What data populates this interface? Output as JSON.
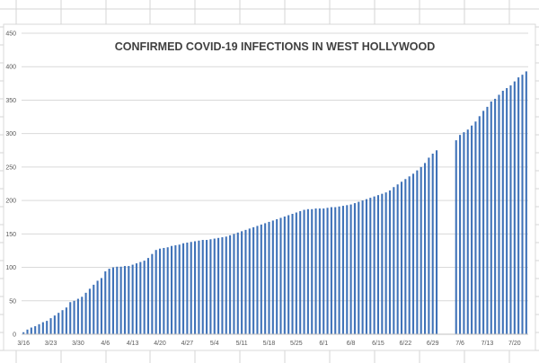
{
  "chart_data": {
    "type": "bar",
    "title": "CONFIRMED COVID-19 INFECTIONS IN WEST HOLLYWOOD",
    "xlabel": "",
    "ylabel": "",
    "ylim": [
      0,
      450
    ],
    "yticks": [
      "0",
      "50",
      "100",
      "150",
      "200",
      "250",
      "300",
      "350",
      "400",
      "450"
    ],
    "grid": true,
    "legend": "none",
    "bar_color": "#3f72b8",
    "x_tick_labels": [
      "3/16",
      "3/23",
      "3/30",
      "4/6",
      "4/13",
      "4/20",
      "4/27",
      "5/4",
      "5/11",
      "5/18",
      "5/25",
      "6/1",
      "6/8",
      "6/15",
      "6/22",
      "6/29",
      "7/6",
      "7/13",
      "7/20"
    ],
    "x_tick_every": 7,
    "values": [
      3,
      7,
      10,
      12,
      15,
      18,
      20,
      24,
      28,
      32,
      36,
      40,
      48,
      50,
      53,
      56,
      62,
      68,
      74,
      80,
      84,
      94,
      98,
      100,
      101,
      101,
      102,
      102,
      104,
      106,
      108,
      110,
      114,
      120,
      126,
      128,
      129,
      130,
      132,
      133,
      134,
      136,
      137,
      138,
      139,
      140,
      141,
      141,
      142,
      143,
      144,
      145,
      146,
      148,
      150,
      152,
      154,
      156,
      158,
      160,
      162,
      164,
      166,
      168,
      170,
      172,
      174,
      176,
      178,
      180,
      182,
      184,
      186,
      187,
      187,
      188,
      188,
      188,
      189,
      190,
      190,
      191,
      192,
      193,
      194,
      196,
      198,
      200,
      202,
      204,
      206,
      208,
      210,
      212,
      215,
      220,
      224,
      228,
      232,
      236,
      240,
      245,
      250,
      256,
      264,
      270,
      275,
      null,
      null,
      null,
      null,
      290,
      298,
      302,
      306,
      312,
      318,
      326,
      334,
      340,
      348,
      352,
      358,
      364,
      368,
      372,
      378,
      384,
      388,
      393
    ]
  }
}
